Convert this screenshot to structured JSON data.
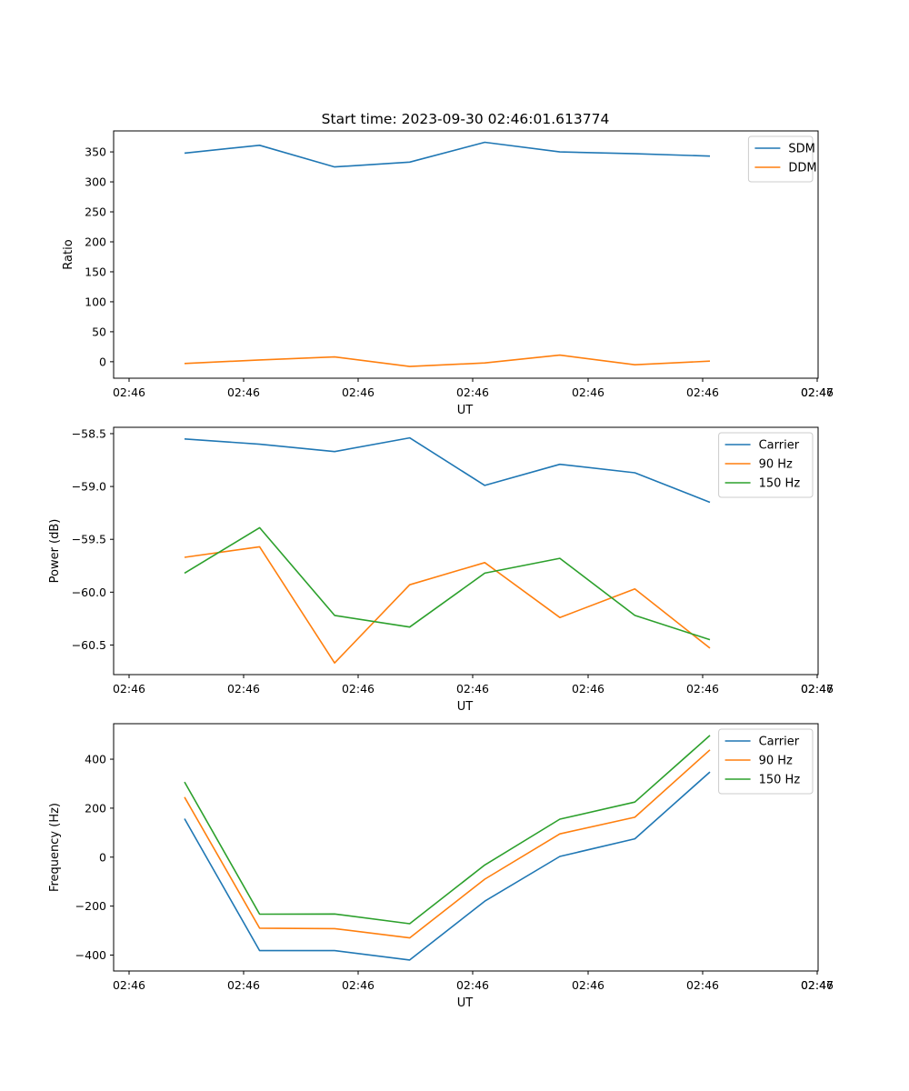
{
  "figure": {
    "suptitle": "Start time: 2023-09-30 02:46:01.613774"
  },
  "colors": {
    "blue": "#1f77b4",
    "orange": "#ff7f0e",
    "green": "#2ca02c"
  },
  "chart_data": [
    {
      "type": "line",
      "ylabel": "Ratio",
      "xlabel": "UT",
      "x_tick_labels": [
        "02:46",
        "02:46",
        "02:46",
        "02:46",
        "02:46",
        "02:46",
        "02:46",
        "02:47"
      ],
      "y_ticks": [
        0,
        50,
        100,
        150,
        200,
        250,
        300,
        350
      ],
      "y_tick_labels": [
        "0",
        "50",
        "100",
        "150",
        "200",
        "250",
        "300",
        "350"
      ],
      "ylim": [
        -27.5,
        385
      ],
      "x": [
        0,
        1,
        2,
        3,
        4,
        5,
        6,
        7
      ],
      "legend": "top-right",
      "series": [
        {
          "name": "SDM",
          "color": "blue",
          "values": [
            348,
            361,
            325,
            333,
            366,
            350,
            347,
            343
          ]
        },
        {
          "name": "DDM",
          "color": "orange",
          "values": [
            -3,
            3,
            8,
            -8,
            -2,
            11,
            -5,
            1
          ]
        }
      ]
    },
    {
      "type": "line",
      "ylabel": "Power (dB)",
      "xlabel": "UT",
      "x_tick_labels": [
        "02:46",
        "02:46",
        "02:46",
        "02:46",
        "02:46",
        "02:46",
        "02:46",
        "02:47"
      ],
      "y_ticks": [
        -58.5,
        -59.0,
        -59.5,
        -60.0,
        -60.5
      ],
      "y_tick_labels": [
        "−58.5",
        "−59.0",
        "−59.5",
        "−60.0",
        "−60.5"
      ],
      "ylim": [
        -60.78,
        -58.44
      ],
      "x": [
        0,
        1,
        2,
        3,
        4,
        5,
        6,
        7
      ],
      "legend": "top-right",
      "series": [
        {
          "name": "Carrier",
          "color": "blue",
          "values": [
            -58.55,
            -58.6,
            -58.67,
            -58.54,
            -58.99,
            -58.79,
            -58.87,
            -59.15
          ]
        },
        {
          "name": "90 Hz",
          "color": "orange",
          "values": [
            -59.67,
            -59.57,
            -60.67,
            -59.93,
            -59.72,
            -60.24,
            -59.97,
            -60.53
          ]
        },
        {
          "name": "150 Hz",
          "color": "green",
          "values": [
            -59.82,
            -59.39,
            -60.22,
            -60.33,
            -59.82,
            -59.68,
            -60.22,
            -60.45
          ]
        }
      ]
    },
    {
      "type": "line",
      "ylabel": "Frequency (Hz)",
      "xlabel": "UT",
      "x_tick_labels": [
        "02:46",
        "02:46",
        "02:46",
        "02:46",
        "02:46",
        "02:46",
        "02:46",
        "02:47"
      ],
      "y_ticks": [
        400,
        200,
        0,
        -200,
        -400
      ],
      "y_tick_labels": [
        "400",
        "200",
        "0",
        "−200",
        "−400"
      ],
      "ylim": [
        -465,
        545
      ],
      "x": [
        0,
        1,
        2,
        3,
        4,
        5,
        6,
        7
      ],
      "legend": "top-right",
      "series": [
        {
          "name": "Carrier",
          "color": "blue",
          "values": [
            157,
            -382,
            -382,
            -420,
            -180,
            3,
            75,
            348
          ]
        },
        {
          "name": "90 Hz",
          "color": "orange",
          "values": [
            245,
            -290,
            -292,
            -330,
            -90,
            95,
            163,
            438
          ]
        },
        {
          "name": "150 Hz",
          "color": "green",
          "values": [
            307,
            -233,
            -232,
            -272,
            -32,
            155,
            225,
            497
          ]
        }
      ]
    }
  ]
}
